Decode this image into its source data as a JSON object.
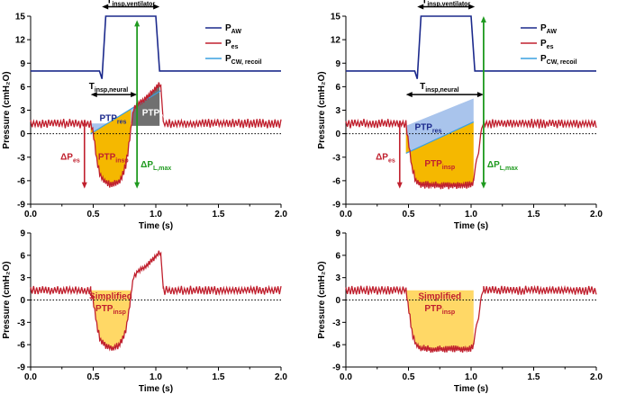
{
  "colors": {
    "paw": "#1c2a8c",
    "pes": "#c0202e",
    "pcw": "#3aa0e0",
    "insp_fill": "#f5b800",
    "insp_fill_simplified": "#ffd866",
    "res_fill": "#a9c4ec",
    "ven_fill": "#707070",
    "dpl": "#1f9a1f",
    "dpes": "#c0202e",
    "ann_red": "#c0202e",
    "ann_green": "#1f9a1f"
  },
  "chart_data": [
    {
      "id": "top-left",
      "type": "line",
      "xlabel": "Time (s)",
      "ylabel": "Pressure (cmH₂O)",
      "xlim": [
        0,
        2.0
      ],
      "ylim": [
        -9,
        15
      ],
      "xticks": [
        "0.0",
        "0.5",
        "1.0",
        "1.5",
        "2.0"
      ],
      "yticks": [
        "-9",
        "-6",
        "-3",
        "0",
        "3",
        "6",
        "9",
        "12",
        "15"
      ],
      "legend": [
        "P",
        "P",
        "P"
      ],
      "legend_sub": [
        "AW",
        "es",
        "CW, recoil"
      ],
      "ann": {
        "t_vent_main": "T",
        "t_vent_sub": "insp,ventilator",
        "t_neural_main": "T",
        "t_neural_sub": "insp,neural",
        "ptp_res_main": "PTP",
        "ptp_res_sub": "res",
        "ptp_insp_main": "PTP",
        "ptp_insp_sub": "insp",
        "ptp_ven_main": "PTP",
        "ptp_ven_sub": "ven",
        "dpes_main": "ΔP",
        "dpes_sub": "es",
        "dpl_main": "ΔP",
        "dpl_sub": "L,max"
      },
      "paw": {
        "x": [
          0,
          0.55,
          0.57,
          0.6,
          1.0,
          1.03,
          2.0
        ],
        "y": [
          8,
          8,
          7,
          15,
          15,
          8,
          8
        ]
      },
      "pes_segments": [
        {
          "kind": "noise",
          "from": 0,
          "to": 0.48,
          "base": 1.3,
          "amp": 0.55
        },
        {
          "kind": "curve",
          "x": [
            0.48,
            0.5,
            0.53,
            0.56,
            0.6,
            0.65,
            0.7,
            0.73,
            0.76,
            0.78,
            0.8
          ],
          "y": [
            1.3,
            0,
            -3.5,
            -5.5,
            -6.2,
            -6.5,
            -6.2,
            -5.5,
            -4.0,
            -2.0,
            0.5
          ],
          "noise": 0.45
        },
        {
          "kind": "curve",
          "x": [
            0.8,
            0.82,
            0.85,
            0.9,
            0.95,
            1.0,
            1.03,
            1.04
          ],
          "y": [
            0.5,
            3.0,
            3.8,
            4.3,
            5.0,
            5.8,
            6.5,
            6.0
          ],
          "noise": 0.35
        },
        {
          "kind": "curve",
          "x": [
            1.04,
            1.06
          ],
          "y": [
            6.0,
            1.5
          ],
          "noise": 0
        },
        {
          "kind": "noise",
          "from": 1.06,
          "to": 2.0,
          "base": 1.3,
          "amp": 0.55
        }
      ],
      "pcw": {
        "x": [
          0.48,
          1.04
        ],
        "y": [
          0,
          5.5
        ]
      },
      "insp_area": {
        "x": [
          0.48,
          0.5,
          0.53,
          0.56,
          0.6,
          0.65,
          0.7,
          0.73,
          0.76,
          0.78,
          0.8
        ],
        "lower": [
          1.3,
          0,
          -3.5,
          -5.5,
          -6.2,
          -6.5,
          -6.2,
          -5.5,
          -4.0,
          -2.0,
          0.5
        ],
        "upper": "pcw"
      },
      "res_area": {
        "x0": 0.48,
        "x1": 0.85,
        "base": 1.3
      },
      "ven_area": {
        "x": [
          0.8,
          0.82,
          0.85,
          0.9,
          0.95,
          1.0,
          1.03
        ],
        "upper": [
          0.5,
          3.0,
          3.8,
          4.3,
          5.0,
          5.8,
          6.5
        ],
        "base": 1.0
      },
      "t_vent": {
        "x0": 0.57,
        "x1": 1.03,
        "y": 16.2
      },
      "t_neural": {
        "x0": 0.48,
        "x1": 0.85,
        "y": 5.0
      },
      "dpes_arrow": {
        "x": 0.43,
        "y0": 1.3,
        "y1": -7.0
      },
      "dpl_arrow": {
        "x": 0.85,
        "y0": -7.0,
        "y1": 14.5
      }
    },
    {
      "id": "top-right",
      "type": "line",
      "xlabel": "Time (s)",
      "ylabel": "Pressure (cmH₂O)",
      "xlim": [
        0,
        2.0
      ],
      "ylim": [
        -9,
        15
      ],
      "xticks": [
        "0.0",
        "0.5",
        "1.0",
        "1.5",
        "2.0"
      ],
      "yticks": [
        "-9",
        "-6",
        "-3",
        "0",
        "3",
        "6",
        "9",
        "12",
        "15"
      ],
      "legend": [
        "P",
        "P",
        "P"
      ],
      "legend_sub": [
        "AW",
        "es",
        "CW, recoil"
      ],
      "ann": {
        "t_vent_main": "T",
        "t_vent_sub": "insp,ventilator",
        "t_neural_main": "T",
        "t_neural_sub": "insp,neural",
        "ptp_res_main": "PTP",
        "ptp_res_sub": "res",
        "ptp_insp_main": "PTP",
        "ptp_insp_sub": "insp",
        "dpes_main": "ΔP",
        "dpes_sub": "es",
        "dpl_main": "ΔP",
        "dpl_sub": "L,max"
      },
      "paw": {
        "x": [
          0,
          0.55,
          0.57,
          0.6,
          1.0,
          1.03,
          2.0
        ],
        "y": [
          8,
          8,
          7,
          15,
          15,
          8,
          8
        ]
      },
      "pes_segments": [
        {
          "kind": "noise",
          "from": 0,
          "to": 0.48,
          "base": 1.3,
          "amp": 0.55
        },
        {
          "kind": "curve",
          "x": [
            0.48,
            0.5,
            0.53,
            0.56,
            0.6,
            0.7,
            0.8,
            0.9,
            0.97,
            1.0,
            1.02
          ],
          "y": [
            1.3,
            -1.0,
            -4.5,
            -6.0,
            -6.5,
            -6.6,
            -6.6,
            -6.6,
            -6.6,
            -6.5,
            -6.0
          ],
          "noise": 0.45
        },
        {
          "kind": "curve",
          "x": [
            1.02,
            1.04,
            1.06,
            1.08,
            1.1
          ],
          "y": [
            -6.0,
            -3.5,
            -2.5,
            0.5,
            1.3
          ],
          "noise": 0
        },
        {
          "kind": "noise",
          "from": 1.1,
          "to": 2.0,
          "base": 1.3,
          "amp": 0.55
        }
      ],
      "pcw": {
        "x": [
          0.48,
          1.02
        ],
        "y": [
          -2.5,
          1.5
        ]
      },
      "insp_area": {
        "x": [
          0.48,
          0.5,
          0.53,
          0.56,
          0.6,
          0.7,
          0.8,
          0.9,
          0.97,
          1.0,
          1.02
        ],
        "lower": [
          1.3,
          -1.0,
          -4.5,
          -6.0,
          -6.5,
          -6.6,
          -6.6,
          -6.6,
          -6.6,
          -6.5,
          -6.0
        ],
        "upper": "pcw"
      },
      "res_area": {
        "x0": 0.48,
        "x1": 1.02,
        "base": 1.0,
        "top": [
          1.0,
          4.5
        ]
      },
      "t_vent": {
        "x0": 0.57,
        "x1": 1.03,
        "y": 16.2
      },
      "t_neural": {
        "x0": 0.48,
        "x1": 1.1,
        "y": 5.0
      },
      "dpes_arrow": {
        "x": 0.43,
        "y0": 1.3,
        "y1": -7.0
      },
      "dpl_arrow": {
        "x": 1.1,
        "y0": -7.0,
        "y1": 15.0
      }
    },
    {
      "id": "bottom-left",
      "type": "line",
      "xlabel": "Time (s)",
      "ylabel": "Pressure (cmH₂O)",
      "xlim": [
        0,
        2.0
      ],
      "ylim": [
        -9,
        9
      ],
      "xticks": [
        "0.0",
        "0.5",
        "1.0",
        "1.5",
        "2.0"
      ],
      "yticks": [
        "-9",
        "-6",
        "-3",
        "0",
        "3",
        "6",
        "9"
      ],
      "ann": {
        "simplified": "Simplified",
        "ptp_main": "PTP",
        "ptp_sub": "insp"
      },
      "pes_segments": [
        {
          "kind": "noise",
          "from": 0,
          "to": 0.48,
          "base": 1.3,
          "amp": 0.55
        },
        {
          "kind": "curve",
          "x": [
            0.48,
            0.5,
            0.53,
            0.56,
            0.6,
            0.65,
            0.7,
            0.73,
            0.76,
            0.78,
            0.8
          ],
          "y": [
            1.3,
            0,
            -3.5,
            -5.5,
            -6.2,
            -6.5,
            -6.2,
            -5.5,
            -4.0,
            -2.0,
            0.5
          ],
          "noise": 0.45
        },
        {
          "kind": "curve",
          "x": [
            0.8,
            0.82,
            0.85,
            0.9,
            0.95,
            1.0,
            1.03,
            1.04
          ],
          "y": [
            0.5,
            3.0,
            3.8,
            4.3,
            5.0,
            5.8,
            6.5,
            6.0
          ],
          "noise": 0.35
        },
        {
          "kind": "curve",
          "x": [
            1.04,
            1.06
          ],
          "y": [
            6.0,
            1.5
          ],
          "noise": 0
        },
        {
          "kind": "noise",
          "from": 1.06,
          "to": 2.0,
          "base": 1.3,
          "amp": 0.55
        }
      ],
      "simplified_area": {
        "x": [
          0.48,
          0.5,
          0.53,
          0.56,
          0.6,
          0.65,
          0.7,
          0.73,
          0.76,
          0.78,
          0.8
        ],
        "lower": [
          1.3,
          0,
          -3.5,
          -5.5,
          -6.2,
          -6.5,
          -6.2,
          -5.5,
          -4.0,
          -2.0,
          0.5
        ],
        "top": 1.3
      }
    },
    {
      "id": "bottom-right",
      "type": "line",
      "xlabel": "Time (s)",
      "ylabel": "Pressure (cmH₂O)",
      "xlim": [
        0,
        2.0
      ],
      "ylim": [
        -9,
        9
      ],
      "xticks": [
        "0.0",
        "0.5",
        "1.0",
        "1.5",
        "2.0"
      ],
      "yticks": [
        "-9",
        "-6",
        "-3",
        "0",
        "3",
        "6",
        "9"
      ],
      "ann": {
        "simplified": "Simplified",
        "ptp_main": "PTP",
        "ptp_sub": "insp"
      },
      "pes_segments": [
        {
          "kind": "noise",
          "from": 0,
          "to": 0.48,
          "base": 1.3,
          "amp": 0.55
        },
        {
          "kind": "curve",
          "x": [
            0.48,
            0.5,
            0.53,
            0.56,
            0.6,
            0.7,
            0.8,
            0.9,
            0.97,
            1.0,
            1.02
          ],
          "y": [
            1.3,
            -1.0,
            -4.5,
            -6.0,
            -6.5,
            -6.6,
            -6.6,
            -6.6,
            -6.6,
            -6.5,
            -6.0
          ],
          "noise": 0.45
        },
        {
          "kind": "curve",
          "x": [
            1.02,
            1.04,
            1.06,
            1.08,
            1.1
          ],
          "y": [
            -6.0,
            -3.5,
            -2.5,
            0.5,
            1.3
          ],
          "noise": 0
        },
        {
          "kind": "noise",
          "from": 1.1,
          "to": 2.0,
          "base": 1.3,
          "amp": 0.55
        }
      ],
      "simplified_area": {
        "x": [
          0.48,
          0.5,
          0.53,
          0.56,
          0.6,
          0.7,
          0.8,
          0.9,
          0.97,
          1.0,
          1.02
        ],
        "lower": [
          1.3,
          -1.0,
          -4.5,
          -6.0,
          -6.5,
          -6.6,
          -6.6,
          -6.6,
          -6.6,
          -6.5,
          -6.0
        ],
        "top": 1.3
      }
    }
  ]
}
